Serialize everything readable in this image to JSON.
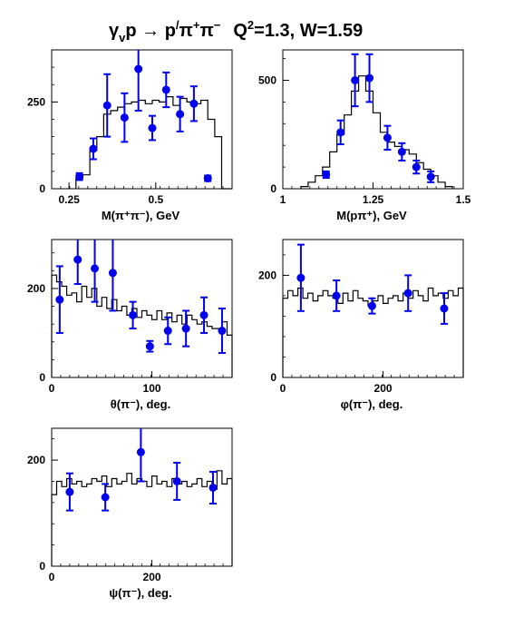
{
  "title": {
    "reaction": "γ",
    "reaction_sub": "v",
    "reaction_rest": "p → p",
    "prime": "/",
    "pi": "π",
    "plus": "+",
    "minus": "−",
    "q2_label": "Q",
    "q2_sup": "2",
    "q2_value": "=1.3, W=1.59"
  },
  "colors": {
    "points": "#0000ee",
    "histogram": "#000000",
    "background": "#ffffff"
  },
  "chart_data": [
    {
      "id": "mpipi",
      "type": "scatter",
      "title": "",
      "xlabel": "M(π⁺π⁻), GeV",
      "ylabel": "",
      "xlim": [
        0.2,
        0.72
      ],
      "ylim": [
        0,
        400
      ],
      "xticks": [
        0.25,
        0.5
      ],
      "xticklabels": [
        "0.25",
        "0.5"
      ],
      "yticks": [
        0,
        250
      ],
      "yticklabels": [
        "0",
        "250"
      ],
      "grid": false,
      "histogram": {
        "edges": [
          0.27,
          0.29,
          0.31,
          0.33,
          0.35,
          0.37,
          0.39,
          0.41,
          0.43,
          0.45,
          0.47,
          0.49,
          0.51,
          0.53,
          0.55,
          0.57,
          0.59,
          0.61,
          0.63,
          0.65,
          0.67,
          0.69,
          0.72
        ],
        "values": [
          30,
          40,
          110,
          150,
          215,
          225,
          235,
          245,
          250,
          255,
          245,
          255,
          250,
          265,
          240,
          260,
          250,
          245,
          255,
          200,
          150,
          0
        ]
      },
      "points": {
        "x": [
          0.28,
          0.32,
          0.36,
          0.41,
          0.45,
          0.49,
          0.53,
          0.57,
          0.61,
          0.65
        ],
        "y": [
          35,
          115,
          240,
          205,
          345,
          175,
          285,
          215,
          245,
          30
        ],
        "err": [
          10,
          30,
          90,
          70,
          120,
          35,
          50,
          50,
          50,
          8
        ]
      }
    },
    {
      "id": "mppi",
      "type": "scatter",
      "title": "",
      "xlabel": "M(pπ⁺), GeV",
      "ylabel": "",
      "xlim": [
        1.0,
        1.5
      ],
      "ylim": [
        0,
        640
      ],
      "xticks": [
        1.0,
        1.25,
        1.5
      ],
      "xticklabels": [
        "1",
        "1.25",
        "1.5"
      ],
      "yticks": [
        0,
        500
      ],
      "yticklabels": [
        "0",
        "500"
      ],
      "grid": false,
      "histogram": {
        "edges": [
          1.05,
          1.07,
          1.09,
          1.11,
          1.13,
          1.15,
          1.17,
          1.19,
          1.21,
          1.23,
          1.25,
          1.27,
          1.29,
          1.31,
          1.33,
          1.35,
          1.37,
          1.39,
          1.41,
          1.43,
          1.45,
          1.47
        ],
        "values": [
          10,
          30,
          60,
          100,
          170,
          250,
          340,
          450,
          520,
          450,
          350,
          260,
          215,
          195,
          180,
          160,
          120,
          90,
          60,
          30,
          10
        ]
      },
      "points": {
        "x": [
          1.12,
          1.16,
          1.2,
          1.24,
          1.29,
          1.33,
          1.37,
          1.41
        ],
        "y": [
          65,
          260,
          500,
          510,
          235,
          170,
          100,
          55
        ],
        "err": [
          15,
          55,
          120,
          110,
          55,
          40,
          30,
          25
        ]
      }
    },
    {
      "id": "theta",
      "type": "scatter",
      "title": "",
      "xlabel": "θ(π⁻), deg.",
      "ylabel": "",
      "xlim": [
        0,
        180
      ],
      "ylim": [
        0,
        310
      ],
      "xticks": [
        0,
        100
      ],
      "xticklabels": [
        "0",
        "100"
      ],
      "yticks": [
        0,
        200
      ],
      "yticklabels": [
        "0",
        "200"
      ],
      "grid": false,
      "histogram": {
        "edges": [
          0,
          5,
          10,
          15,
          20,
          25,
          30,
          35,
          40,
          45,
          50,
          55,
          60,
          65,
          70,
          75,
          80,
          85,
          90,
          95,
          100,
          105,
          110,
          115,
          120,
          125,
          130,
          135,
          140,
          145,
          150,
          155,
          160,
          165,
          170,
          175,
          180
        ],
        "values": [
          230,
          215,
          205,
          185,
          190,
          170,
          205,
          180,
          200,
          160,
          180,
          155,
          175,
          150,
          160,
          140,
          155,
          135,
          150,
          140,
          130,
          150,
          130,
          145,
          125,
          140,
          120,
          140,
          130,
          120,
          125,
          115,
          110,
          110,
          125,
          95
        ]
      },
      "points": {
        "x": [
          8,
          26,
          43,
          61,
          81,
          98,
          116,
          134,
          152,
          170
        ],
        "y": [
          175,
          265,
          245,
          235,
          140,
          70,
          105,
          110,
          140,
          105
        ],
        "err": [
          75,
          55,
          75,
          85,
          30,
          12,
          30,
          40,
          40,
          50
        ]
      }
    },
    {
      "id": "phi",
      "type": "scatter",
      "title": "",
      "xlabel": "φ(π⁻), deg.",
      "ylabel": "",
      "xlim": [
        0,
        360
      ],
      "ylim": [
        0,
        270
      ],
      "xticks": [
        0,
        200
      ],
      "xticklabels": [
        "0",
        "200"
      ],
      "yticks": [
        0,
        200
      ],
      "yticklabels": [
        "0",
        "200"
      ],
      "grid": false,
      "histogram": {
        "edges": [
          0,
          10,
          20,
          30,
          40,
          50,
          60,
          70,
          80,
          90,
          100,
          110,
          120,
          130,
          140,
          150,
          160,
          170,
          180,
          190,
          200,
          210,
          220,
          230,
          240,
          250,
          260,
          270,
          280,
          290,
          300,
          310,
          320,
          330,
          340,
          350,
          360
        ],
        "values": [
          155,
          170,
          160,
          175,
          155,
          165,
          150,
          160,
          170,
          160,
          155,
          145,
          165,
          150,
          170,
          155,
          150,
          140,
          150,
          160,
          145,
          155,
          160,
          150,
          165,
          155,
          170,
          160,
          150,
          175,
          160,
          165,
          155,
          170,
          160,
          175
        ]
      },
      "points": {
        "x": [
          36,
          107,
          178,
          250,
          322
        ],
        "y": [
          195,
          160,
          140,
          165,
          135
        ],
        "err": [
          65,
          30,
          15,
          35,
          30
        ]
      }
    },
    {
      "id": "psi",
      "type": "scatter",
      "title": "",
      "xlabel": "ψ(π⁻), deg.",
      "ylabel": "",
      "xlim": [
        0,
        360
      ],
      "ylim": [
        0,
        260
      ],
      "xticks": [
        0,
        200
      ],
      "xticklabels": [
        "0",
        "200"
      ],
      "yticks": [
        0,
        200
      ],
      "yticklabels": [
        "0",
        "200"
      ],
      "grid": false,
      "histogram": {
        "edges": [
          0,
          10,
          20,
          30,
          40,
          50,
          60,
          70,
          80,
          90,
          100,
          110,
          120,
          130,
          140,
          150,
          160,
          170,
          180,
          190,
          200,
          210,
          220,
          230,
          240,
          250,
          260,
          270,
          280,
          290,
          300,
          310,
          320,
          330,
          340,
          350,
          360
        ],
        "values": [
          135,
          160,
          150,
          165,
          155,
          160,
          150,
          155,
          165,
          160,
          170,
          150,
          165,
          155,
          160,
          175,
          155,
          165,
          160,
          150,
          170,
          155,
          160,
          150,
          165,
          155,
          160,
          150,
          155,
          165,
          150,
          160,
          145,
          180,
          155,
          165
        ]
      },
      "points": {
        "x": [
          36,
          107,
          178,
          250,
          322
        ],
        "y": [
          140,
          130,
          215,
          160,
          148
        ],
        "err": [
          35,
          25,
          55,
          35,
          30
        ]
      }
    }
  ]
}
